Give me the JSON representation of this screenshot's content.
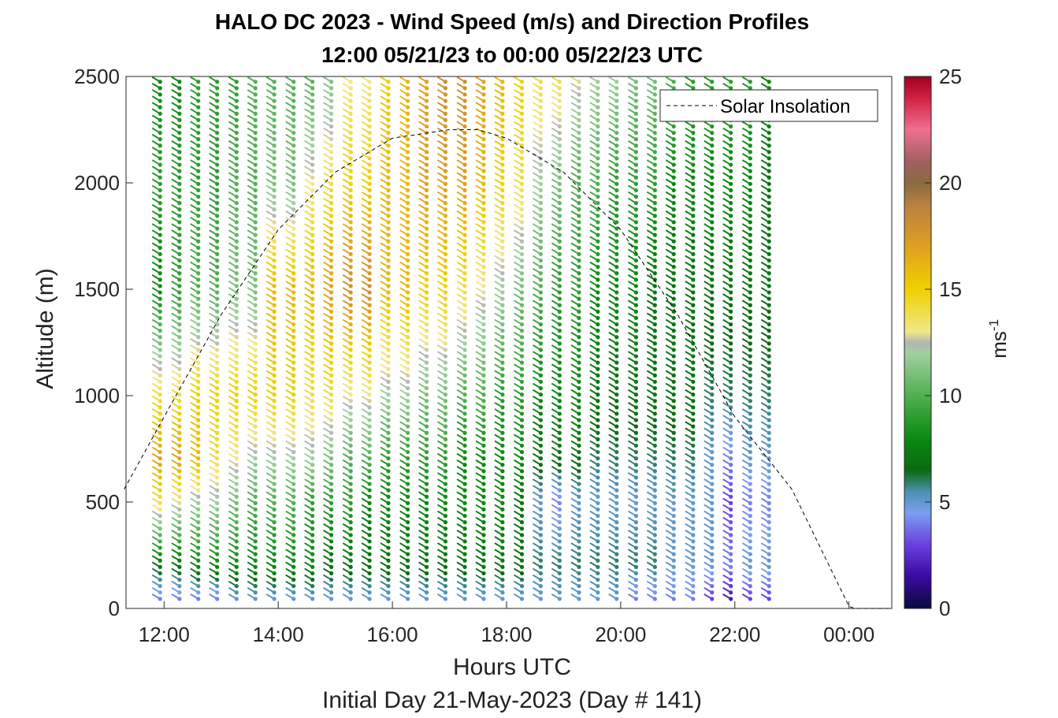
{
  "chart_data": {
    "type": "wind barb profile",
    "title": "HALO DC 2023 - Wind Speed (m/s) and Direction Profiles",
    "subtitle": "12:00 05/21/23 to 00:00 05/22/23  UTC",
    "xlabel": "Hours UTC",
    "xlabel_secondary": "Initial Day 21-May-2023 (Day # 141)",
    "ylabel": "Altitude (m)",
    "xlim": [
      "11:20",
      "00:45"
    ],
    "ylim": [
      0,
      2500
    ],
    "x_ticks": [
      "12:00",
      "14:00",
      "16:00",
      "18:00",
      "20:00",
      "22:00",
      "00:00"
    ],
    "x_tick_hours": [
      12,
      14,
      16,
      18,
      20,
      22,
      24
    ],
    "y_ticks": [
      0,
      500,
      1000,
      1500,
      2000,
      2500
    ],
    "legend": {
      "position": "top-right",
      "entries": [
        "Solar Insolation"
      ]
    },
    "colorbar": {
      "label": "ms",
      "label_exponent": "-1",
      "range": [
        0,
        25
      ],
      "ticks": [
        0,
        5,
        10,
        15,
        20,
        25
      ],
      "colormap": [
        [
          0,
          "#0a0a40"
        ],
        [
          1.5,
          "#3a0aa0"
        ],
        [
          3,
          "#6a40e0"
        ],
        [
          4.5,
          "#7aa0f0"
        ],
        [
          5.5,
          "#4a90b0"
        ],
        [
          6.5,
          "#0a6a10"
        ],
        [
          8,
          "#0a8a10"
        ],
        [
          10,
          "#50b050"
        ],
        [
          12,
          "#a0d0a0"
        ],
        [
          12.5,
          "#b4b4b4"
        ],
        [
          13,
          "#f0e88a"
        ],
        [
          15,
          "#f0d000"
        ],
        [
          17,
          "#e0a020"
        ],
        [
          19,
          "#b88040"
        ],
        [
          20,
          "#8a6a40"
        ],
        [
          21,
          "#a06060"
        ],
        [
          22.5,
          "#f07090"
        ],
        [
          24,
          "#d02040"
        ],
        [
          25,
          "#a00020"
        ]
      ]
    },
    "profile_times_hours": [
      11.93,
      12.27,
      12.6,
      12.93,
      13.27,
      13.6,
      13.93,
      14.27,
      14.6,
      14.93,
      15.27,
      15.6,
      15.93,
      16.27,
      16.6,
      16.93,
      17.27,
      17.6,
      17.93,
      18.27,
      18.6,
      18.93,
      19.27,
      19.6,
      19.93,
      20.27,
      20.6,
      20.93,
      21.27,
      21.6,
      21.93,
      22.27,
      22.6
    ],
    "altitude_bins_m": {
      "start": 45,
      "step": 30,
      "end": 2490
    },
    "speed_by_time_and_altitude_mps": {
      "altitudes": [
        50,
        200,
        500,
        700,
        1000,
        1500,
        2000,
        2500
      ],
      "profiles": [
        [
          4,
          7,
          14,
          17,
          14,
          8,
          9,
          8
        ],
        [
          4,
          7,
          13,
          17,
          14,
          9,
          9,
          8
        ],
        [
          4,
          8,
          12,
          16,
          15,
          10,
          9,
          9
        ],
        [
          4,
          8,
          12,
          14,
          15,
          10,
          9,
          9
        ],
        [
          5,
          8,
          11,
          13,
          15,
          11,
          10,
          9
        ],
        [
          5,
          8,
          10,
          12,
          15,
          11,
          10,
          10
        ],
        [
          5,
          8,
          10,
          12,
          15,
          16,
          11,
          10
        ],
        [
          5,
          8,
          10,
          12,
          15,
          16,
          11,
          10
        ],
        [
          5,
          8,
          9,
          12,
          14,
          16,
          13,
          10
        ],
        [
          5,
          7,
          9,
          11,
          14,
          17,
          14,
          11
        ],
        [
          5,
          7,
          9,
          10,
          13,
          18,
          15,
          13
        ],
        [
          5,
          7,
          8,
          10,
          13,
          18,
          15,
          13
        ],
        [
          5,
          7,
          8,
          9,
          12,
          16,
          16,
          15
        ],
        [
          5,
          7,
          8,
          9,
          12,
          16,
          16,
          16
        ],
        [
          5,
          7,
          8,
          9,
          11,
          15,
          17,
          17
        ],
        [
          5,
          7,
          8,
          9,
          11,
          15,
          17,
          18
        ],
        [
          5,
          7,
          8,
          8,
          10,
          14,
          17,
          18
        ],
        [
          5,
          7,
          8,
          8,
          10,
          13,
          16,
          17
        ],
        [
          5,
          7,
          8,
          8,
          9,
          12,
          15,
          16
        ],
        [
          5,
          7,
          7,
          8,
          9,
          11,
          14,
          15
        ],
        [
          5,
          6,
          5,
          7,
          8,
          10,
          12,
          14
        ],
        [
          5,
          6,
          4,
          7,
          8,
          9,
          11,
          14
        ],
        [
          5,
          6,
          5,
          7,
          8,
          9,
          10,
          13
        ],
        [
          5,
          6,
          5,
          6,
          7,
          8,
          10,
          12
        ],
        [
          5,
          6,
          5,
          6,
          7,
          8,
          9,
          12
        ],
        [
          4,
          6,
          5,
          6,
          7,
          8,
          9,
          11
        ],
        [
          4,
          6,
          5,
          6,
          7,
          7,
          9,
          11
        ],
        [
          4,
          5,
          5,
          6,
          7,
          7,
          8,
          10
        ],
        [
          4,
          5,
          5,
          6,
          7,
          7,
          8,
          9
        ],
        [
          3,
          5,
          5,
          5,
          6,
          7,
          8,
          9
        ],
        [
          2,
          4,
          3,
          4,
          6,
          7,
          8,
          9
        ],
        [
          3,
          5,
          4,
          5,
          6,
          7,
          8,
          9
        ],
        [
          3,
          5,
          4,
          5,
          6,
          7,
          7,
          8
        ]
      ]
    },
    "solar_insolation_curve": {
      "name": "Solar Insolation",
      "style": "dashed",
      "color": "#000000",
      "x_hours": [
        11.3,
        12.0,
        13.0,
        14.0,
        15.0,
        16.0,
        17.0,
        17.5,
        18.0,
        19.0,
        20.0,
        21.0,
        22.0,
        23.0,
        24.0,
        24.1,
        24.7
      ],
      "y_m": [
        560,
        900,
        1380,
        1780,
        2050,
        2210,
        2250,
        2250,
        2210,
        2050,
        1780,
        1380,
        900,
        560,
        10,
        0,
        0
      ]
    }
  }
}
